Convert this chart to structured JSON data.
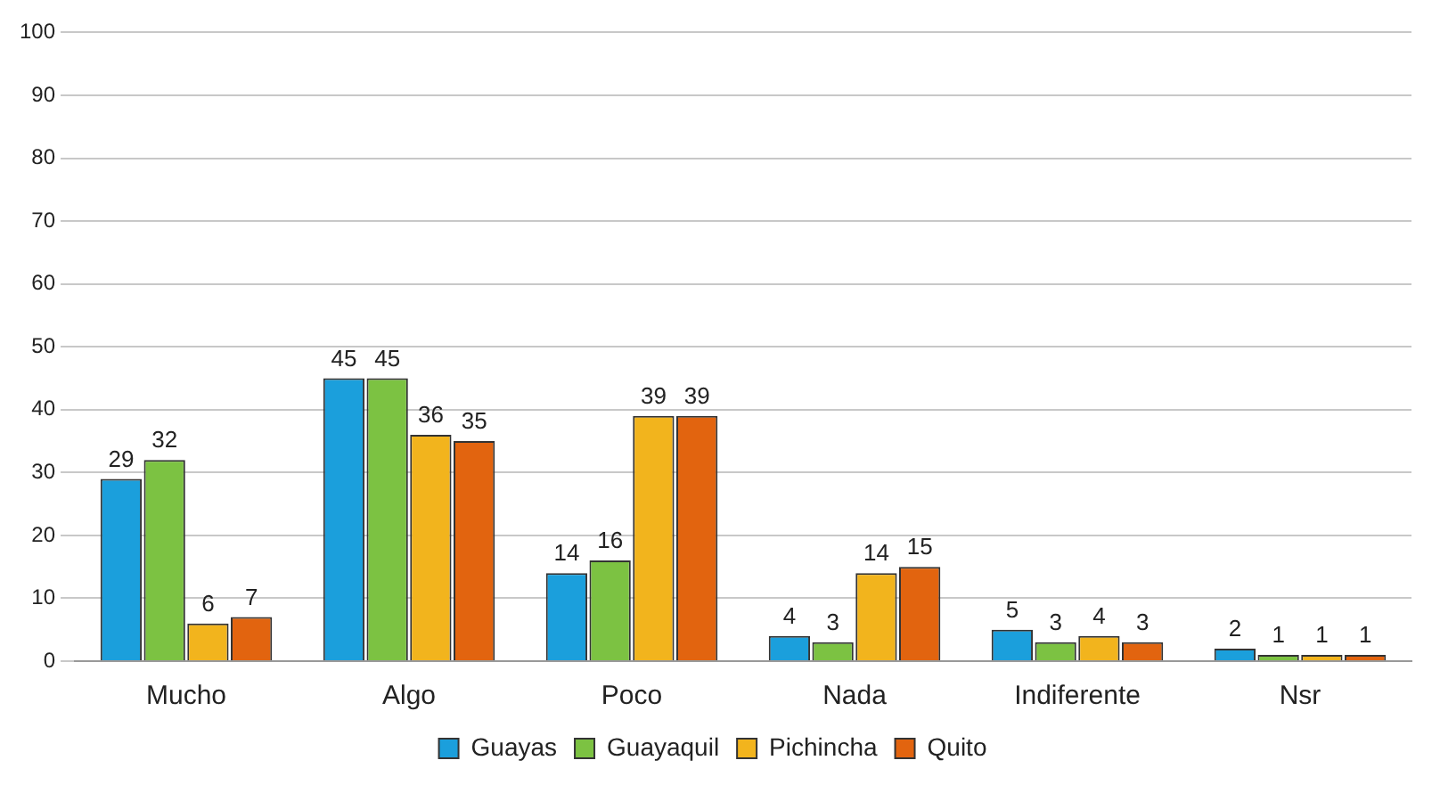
{
  "chart_data": {
    "type": "bar",
    "categories": [
      "Mucho",
      "Algo",
      "Poco",
      "Nada",
      "Indiferente",
      "Nsr"
    ],
    "series": [
      {
        "name": "Guayas",
        "color": "#1b9fdc",
        "values": [
          29,
          45,
          14,
          4,
          5,
          2
        ]
      },
      {
        "name": "Guayaquil",
        "color": "#7cc242",
        "values": [
          32,
          45,
          16,
          3,
          3,
          1
        ]
      },
      {
        "name": "Pichincha",
        "color": "#f2b41d",
        "values": [
          6,
          36,
          39,
          14,
          4,
          1
        ]
      },
      {
        "name": "Quito",
        "color": "#e2640f",
        "values": [
          7,
          35,
          39,
          15,
          3,
          1
        ]
      }
    ],
    "ylim": [
      0,
      100
    ],
    "yticks": [
      0,
      10,
      20,
      30,
      40,
      50,
      60,
      70,
      80,
      90,
      100
    ],
    "grid": "y",
    "legend": "bottom",
    "data_labels": true
  }
}
